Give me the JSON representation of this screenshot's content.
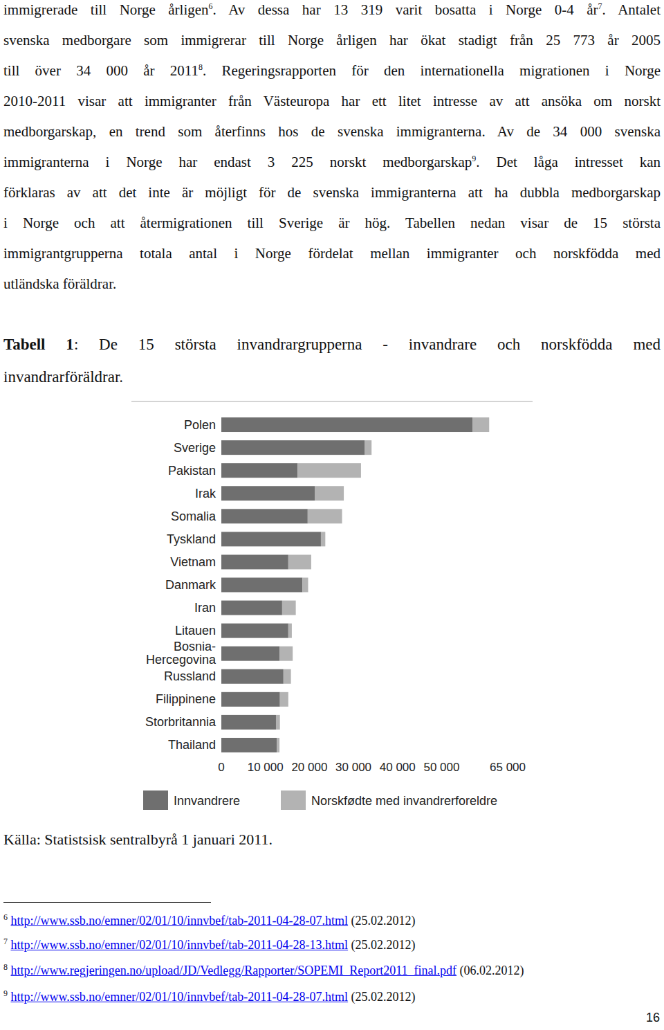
{
  "body": {
    "lines": [
      [
        "immigrerade till Norge årligen",
        {
          "sup": "6"
        },
        ". Av dessa har 13 319 varit bosatta i Norge 0-4 år",
        {
          "sup": "7"
        },
        ". Antalet"
      ],
      [
        "svenska medborgare som immigrerar till Norge årligen har ökat stadigt från 25 773 år 2005"
      ],
      [
        "till över 34 000 år 2011",
        {
          "sup": "8"
        },
        ". Regeringsrapporten för den internationella migrationen i Norge"
      ],
      [
        "2010-2011 visar att immigranter från Västeuropa har ett litet intresse av att ansöka om norskt"
      ],
      [
        "medborgarskap, en trend som återfinns hos de svenska immigranterna. Av de 34 000 svenska"
      ],
      [
        "immigranterna i Norge har endast 3 225 norskt medborgarskap",
        {
          "sup": "9"
        },
        ". Det låga intresset kan"
      ],
      [
        "förklaras av att det inte är möjligt för de svenska immigranterna att ha dubbla medborgarskap"
      ],
      [
        "i Norge och att återmigrationen till Sverige är hög. Tabellen nedan visar de 15 största"
      ],
      [
        "immigrantgrupperna totala antal i Norge fördelat mellan immigranter och norskfödda med"
      ],
      [
        "utländska föräldrar."
      ]
    ]
  },
  "caption": {
    "label": "Tabell 1",
    "lines": [
      ": De 15 största invandrargrupperna - invandrare och norskfödda med",
      "invandrarföräldrar."
    ]
  },
  "chart_data": {
    "type": "bar",
    "orientation": "horizontal",
    "stacked": true,
    "grid": false,
    "legend": "bottom",
    "categories": [
      "Polen",
      "Sverige",
      "Pakistan",
      "Irak",
      "Somalia",
      "Tyskland",
      "Vietnam",
      "Danmark",
      "Iran",
      "Litauen",
      "Bosnia-Hercegovina",
      "Russland",
      "Filippinene",
      "Storbritannia",
      "Thailand"
    ],
    "series": [
      {
        "name": "Innvandrere",
        "color": "#6f6f6f",
        "values": [
          57000,
          32500,
          17300,
          21200,
          19600,
          22600,
          15200,
          18400,
          13800,
          15200,
          13200,
          14100,
          13300,
          12400,
          12600
        ]
      },
      {
        "name": "Norskfødte med invandrerforeldre",
        "color": "#b3b3b3",
        "values": [
          3800,
          1600,
          14400,
          6600,
          7800,
          1000,
          5200,
          1300,
          3100,
          800,
          3000,
          1700,
          1900,
          900,
          600
        ]
      }
    ],
    "xlim": [
      0,
      65000
    ],
    "xticks": [
      0,
      {
        "value": 10000,
        "label": "10 000"
      },
      {
        "value": 20000,
        "label": "20 000"
      },
      {
        "value": 30000,
        "label": "30 000"
      },
      {
        "value": 40000,
        "label": "40 000"
      },
      {
        "value": 50000,
        "label": "50 000"
      },
      {
        "value": 65000,
        "label": "65 000"
      }
    ]
  },
  "source": "Källa: Statistsisk sentralbyrå 1 januari 2011.",
  "footnotes": [
    {
      "number": "6",
      "url": "http://www.ssb.no/emner/02/01/10/innvbef/tab-2011-04-28-07.html",
      "date": "(25.02.2012)"
    },
    {
      "number": "7",
      "url": "http://www.ssb.no/emner/02/01/10/innvbef/tab-2011-04-28-13.html",
      "date": "(25.02.2012)"
    },
    {
      "number": "8",
      "url": "http://www.regjeringen.no/upload/JD/Vedlegg/Rapporter/SOPEMI_Report2011_final.pdf",
      "date": "(06.02.2012)"
    },
    {
      "number": "9",
      "url": "http://www.ssb.no/emner/02/01/10/innvbef/tab-2011-04-28-07.html",
      "date": "(25.02.2012)"
    }
  ],
  "page_number": "16"
}
